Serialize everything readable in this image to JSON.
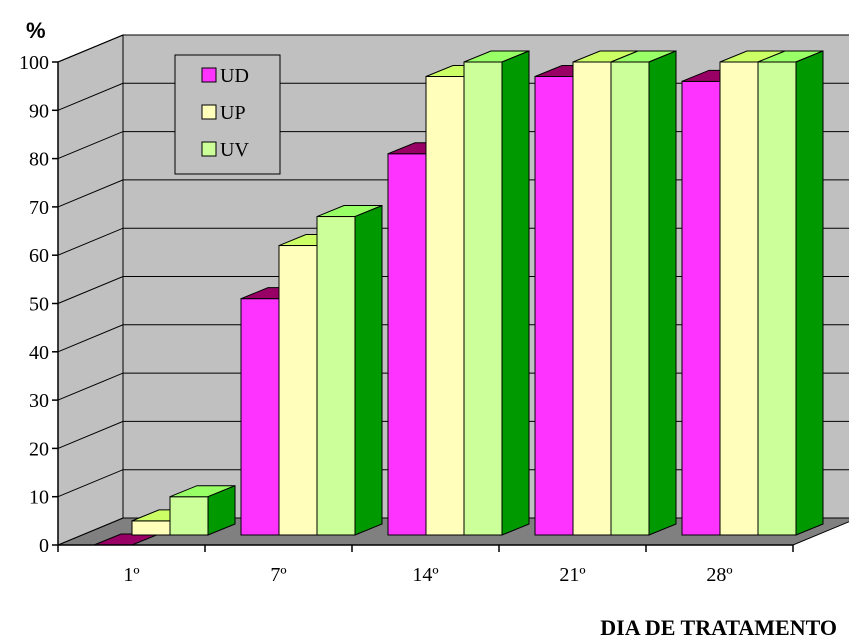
{
  "chart_data": {
    "type": "bar",
    "style": "3d-clustered",
    "title": "",
    "ylabel": "%",
    "xlabel": "DIA DE TRATAMENTO",
    "categories": [
      "1º",
      "7º",
      "14º",
      "21º",
      "28º"
    ],
    "series": [
      {
        "name": "UD",
        "values": [
          0,
          51,
          81,
          97,
          96
        ],
        "color": "#ff33ff",
        "top_color": "#990066"
      },
      {
        "name": "UP",
        "values": [
          5,
          62,
          97,
          100,
          100
        ],
        "color": "#ffffbb",
        "top_color": "#ccff66"
      },
      {
        "name": "UV",
        "values": [
          10,
          68,
          100,
          100,
          100
        ],
        "color": "#ccff99",
        "side_color": "#009900",
        "top_color": "#99ff66"
      }
    ],
    "ylim": [
      0,
      100
    ],
    "yticks": [
      0,
      10,
      20,
      30,
      40,
      50,
      60,
      70,
      80,
      90,
      100
    ],
    "grid": true,
    "legend": "top-left",
    "wall_color": "#c0c0c0",
    "floor_color": "#808080"
  }
}
